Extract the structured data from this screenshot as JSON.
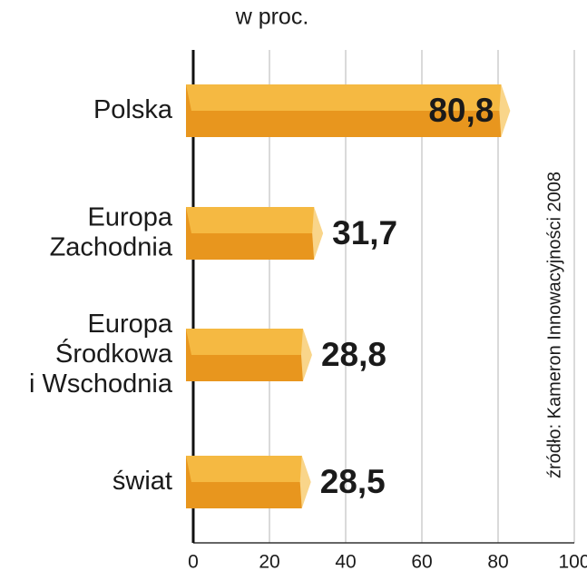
{
  "chart_data": {
    "type": "bar",
    "orientation": "horizontal",
    "title": "w proc.",
    "categories": [
      [
        "Polska"
      ],
      [
        "Europa",
        "Zachodnia"
      ],
      [
        "Europa",
        "Środkowa",
        "i Wschodnia"
      ],
      [
        "świat"
      ]
    ],
    "values": [
      80.8,
      31.7,
      28.8,
      28.5
    ],
    "value_labels": [
      "80,8",
      "31,7",
      "28,8",
      "28,5"
    ],
    "color": "#e8961e",
    "highlight_color": "#f5b942",
    "xlim": [
      0,
      100
    ],
    "xticks": [
      0,
      20,
      40,
      60,
      80,
      100
    ],
    "grid": true,
    "source": "źródło: Kameron Innowacyjności 2008"
  }
}
